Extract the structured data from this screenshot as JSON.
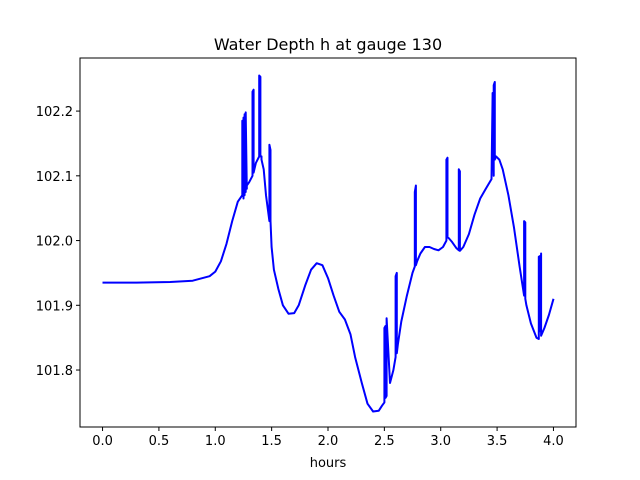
{
  "chart_data": {
    "type": "line",
    "title": "Water Depth h at gauge 130",
    "xlabel": "hours",
    "ylabel": "",
    "xlim": [
      -0.2,
      4.2
    ],
    "ylim": [
      101.712,
      102.282
    ],
    "xticks": [
      0.0,
      0.5,
      1.0,
      1.5,
      2.0,
      2.5,
      3.0,
      3.5,
      4.0
    ],
    "xtick_labels": [
      "0.0",
      "0.5",
      "1.0",
      "1.5",
      "2.0",
      "2.5",
      "3.0",
      "3.5",
      "4.0"
    ],
    "yticks": [
      101.8,
      101.9,
      102.0,
      102.1,
      102.2
    ],
    "ytick_labels": [
      "101.8",
      "101.9",
      "102.0",
      "102.1",
      "102.2"
    ],
    "grid": false,
    "series": [
      {
        "color": "#0000ff",
        "x": [
          0.0,
          0.3,
          0.6,
          0.8,
          0.95,
          1.0,
          1.05,
          1.1,
          1.15,
          1.2,
          1.24,
          1.24,
          1.25,
          1.25,
          1.26,
          1.26,
          1.27,
          1.27,
          1.28,
          1.28,
          1.3,
          1.33,
          1.33,
          1.34,
          1.34,
          1.36,
          1.39,
          1.39,
          1.4,
          1.4,
          1.41,
          1.41,
          1.43,
          1.45,
          1.48,
          1.48,
          1.49,
          1.49,
          1.5,
          1.52,
          1.56,
          1.6,
          1.65,
          1.7,
          1.74,
          1.8,
          1.85,
          1.9,
          1.95,
          2.0,
          2.05,
          2.1,
          2.15,
          2.2,
          2.24,
          2.3,
          2.35,
          2.4,
          2.45,
          2.48,
          2.5,
          2.5,
          2.51,
          2.51,
          2.52,
          2.52,
          2.55,
          2.58,
          2.6,
          2.6,
          2.61,
          2.61,
          2.62,
          2.65,
          2.7,
          2.75,
          2.77,
          2.77,
          2.78,
          2.78,
          2.79,
          2.82,
          2.86,
          2.9,
          2.94,
          2.98,
          3.02,
          3.05,
          3.05,
          3.06,
          3.06,
          3.07,
          3.1,
          3.14,
          3.16,
          3.16,
          3.17,
          3.17,
          3.2,
          3.25,
          3.3,
          3.35,
          3.4,
          3.45,
          3.46,
          3.46,
          3.47,
          3.47,
          3.48,
          3.48,
          3.49,
          3.52,
          3.55,
          3.6,
          3.65,
          3.7,
          3.74,
          3.74,
          3.75,
          3.75,
          3.76,
          3.8,
          3.85,
          3.87,
          3.87,
          3.88,
          3.88,
          3.89,
          3.89,
          3.92,
          3.96,
          4.0
        ],
        "y": [
          101.935,
          101.935,
          101.936,
          101.938,
          101.945,
          101.952,
          101.968,
          101.995,
          102.03,
          102.06,
          102.07,
          102.185,
          102.065,
          102.19,
          102.07,
          102.195,
          102.075,
          102.198,
          102.08,
          102.085,
          102.09,
          102.1,
          102.23,
          102.233,
          102.105,
          102.12,
          102.13,
          102.255,
          102.253,
          102.13,
          102.13,
          102.125,
          102.11,
          102.07,
          102.03,
          102.148,
          102.14,
          102.03,
          101.99,
          101.955,
          101.925,
          101.9,
          101.887,
          101.888,
          101.9,
          101.932,
          101.955,
          101.965,
          101.962,
          101.942,
          101.915,
          101.89,
          101.878,
          101.855,
          101.82,
          101.78,
          101.748,
          101.736,
          101.737,
          101.745,
          101.75,
          101.865,
          101.868,
          101.757,
          101.76,
          101.88,
          101.78,
          101.8,
          101.82,
          101.945,
          101.95,
          101.826,
          101.84,
          101.875,
          101.915,
          101.95,
          101.96,
          102.075,
          102.085,
          101.962,
          101.968,
          101.98,
          101.99,
          101.99,
          101.987,
          101.985,
          101.99,
          102.0,
          102.125,
          102.128,
          102.005,
          102.004,
          101.998,
          101.988,
          101.985,
          102.11,
          102.107,
          101.984,
          101.99,
          102.01,
          102.04,
          102.065,
          102.08,
          102.095,
          102.225,
          102.228,
          102.1,
          102.24,
          102.245,
          102.125,
          102.13,
          102.125,
          102.11,
          102.07,
          102.02,
          101.96,
          101.915,
          102.03,
          102.028,
          101.91,
          101.9,
          101.872,
          101.85,
          101.848,
          101.975,
          101.976,
          101.86,
          101.98,
          101.853,
          101.865,
          101.885,
          101.91
        ]
      }
    ]
  }
}
